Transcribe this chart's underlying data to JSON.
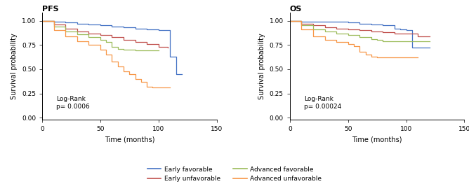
{
  "pfs_title": "PFS",
  "os_title": "OS",
  "xlabel": "Time (months)",
  "ylabel": "Survival probability",
  "xlim": [
    0,
    150
  ],
  "ylim": [
    -0.02,
    1.08
  ],
  "yticks": [
    0.0,
    0.25,
    0.5,
    0.75,
    1.0
  ],
  "xticks": [
    0,
    50,
    100,
    150
  ],
  "pfs_logrank": "Log-Rank\np= 0.0006",
  "os_logrank": "Log-Rank\np= 0.00024",
  "colors": {
    "early_favorable": "#4472C4",
    "early_unfavorable": "#C0504D",
    "advanced_favorable": "#9BBB59",
    "advanced_unfavorable": "#F79646"
  },
  "legend_labels": [
    "Early favorable",
    "Early unfavorable",
    "Advanced favorable",
    "Advanced unfavorable"
  ],
  "pfs_curves": {
    "early_favorable": {
      "x": [
        0,
        10,
        20,
        30,
        40,
        50,
        60,
        70,
        80,
        90,
        95,
        100,
        105,
        110,
        115,
        120
      ],
      "y": [
        1.0,
        0.99,
        0.98,
        0.97,
        0.96,
        0.95,
        0.94,
        0.93,
        0.92,
        0.91,
        0.91,
        0.9,
        0.9,
        0.63,
        0.45,
        0.45
      ]
    },
    "early_unfavorable": {
      "x": [
        0,
        10,
        20,
        30,
        40,
        50,
        60,
        70,
        80,
        90,
        100,
        108
      ],
      "y": [
        1.0,
        0.96,
        0.92,
        0.89,
        0.87,
        0.85,
        0.83,
        0.8,
        0.78,
        0.76,
        0.73,
        0.72
      ]
    },
    "advanced_favorable": {
      "x": [
        0,
        10,
        20,
        30,
        40,
        50,
        55,
        60,
        65,
        70,
        75,
        80,
        100
      ],
      "y": [
        1.0,
        0.94,
        0.89,
        0.86,
        0.83,
        0.8,
        0.78,
        0.73,
        0.71,
        0.7,
        0.7,
        0.69,
        0.69
      ]
    },
    "advanced_unfavorable": {
      "x": [
        0,
        10,
        20,
        30,
        40,
        50,
        55,
        60,
        65,
        70,
        75,
        80,
        85,
        90,
        95,
        105,
        110
      ],
      "y": [
        1.0,
        0.9,
        0.84,
        0.79,
        0.75,
        0.7,
        0.65,
        0.58,
        0.53,
        0.48,
        0.45,
        0.4,
        0.37,
        0.32,
        0.31,
        0.31,
        0.31
      ]
    }
  },
  "os_curves": {
    "early_favorable": {
      "x": [
        0,
        10,
        20,
        30,
        40,
        50,
        60,
        70,
        80,
        90,
        95,
        100,
        105,
        110,
        120
      ],
      "y": [
        1.0,
        0.99,
        0.99,
        0.99,
        0.99,
        0.98,
        0.97,
        0.96,
        0.95,
        0.92,
        0.91,
        0.9,
        0.72,
        0.72,
        0.72
      ]
    },
    "early_unfavorable": {
      "x": [
        0,
        10,
        20,
        30,
        40,
        50,
        60,
        70,
        80,
        90,
        100,
        110,
        120
      ],
      "y": [
        1.0,
        0.97,
        0.95,
        0.93,
        0.92,
        0.91,
        0.9,
        0.89,
        0.88,
        0.87,
        0.87,
        0.84,
        0.84
      ]
    },
    "advanced_favorable": {
      "x": [
        0,
        10,
        20,
        30,
        40,
        50,
        60,
        70,
        75,
        80,
        120
      ],
      "y": [
        1.0,
        0.95,
        0.91,
        0.89,
        0.87,
        0.85,
        0.83,
        0.81,
        0.8,
        0.79,
        0.79
      ]
    },
    "advanced_unfavorable": {
      "x": [
        0,
        10,
        20,
        30,
        40,
        50,
        55,
        60,
        65,
        70,
        75,
        80,
        100,
        110
      ],
      "y": [
        1.0,
        0.91,
        0.84,
        0.8,
        0.78,
        0.76,
        0.74,
        0.68,
        0.65,
        0.63,
        0.62,
        0.62,
        0.62,
        0.62
      ]
    }
  }
}
